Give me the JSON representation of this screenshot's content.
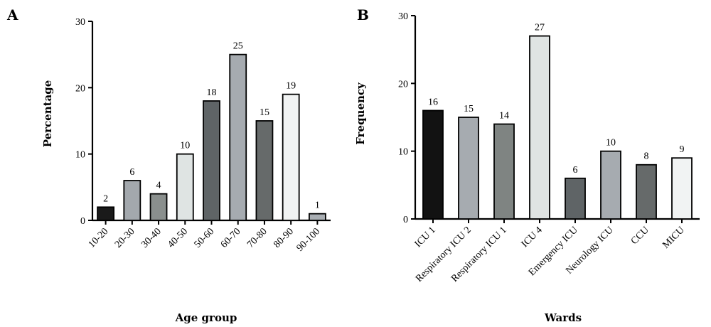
{
  "chart_data": [
    {
      "panel": "A",
      "type": "bar",
      "xlabel": "Age group",
      "ylabel": "Percentage",
      "ylim": [
        0,
        30
      ],
      "yticks": [
        0,
        10,
        20,
        30
      ],
      "grid": false,
      "categories": [
        "10-20",
        "20-30",
        "30-40",
        "40-50",
        "50-60",
        "60-70",
        "70-80",
        "80-90",
        "90-100"
      ],
      "values": [
        2,
        6,
        4,
        10,
        18,
        25,
        15,
        19,
        1
      ],
      "colors": [
        "#1a1a1a",
        "#a3a8ad",
        "#8a8f8d",
        "#dfe4e3",
        "#5f6466",
        "#a6abb0",
        "#666a6a",
        "#f1f3f3",
        "#a9aeb3"
      ]
    },
    {
      "panel": "B",
      "type": "bar",
      "xlabel": "Wards",
      "ylabel": "Frequency",
      "ylim": [
        0,
        30
      ],
      "yticks": [
        0,
        10,
        20,
        30
      ],
      "grid": false,
      "categories": [
        "ICU 1",
        "Respiratory ICU 2",
        "Respiratory ICU 1",
        "ICU 4",
        "Emergency ICU",
        "Neurology ICU",
        "CCU",
        "MICU"
      ],
      "values": [
        16,
        15,
        14,
        27,
        6,
        10,
        8,
        9
      ],
      "colors": [
        "#121212",
        "#a6abb0",
        "#7f8482",
        "#dfe4e3",
        "#5f6466",
        "#a6abb0",
        "#666a6a",
        "#f1f3f3"
      ]
    }
  ]
}
